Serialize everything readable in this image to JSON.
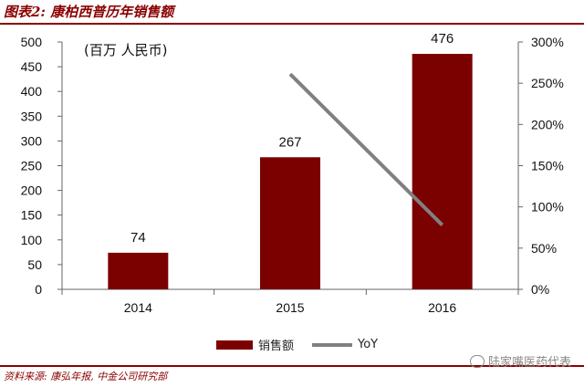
{
  "figure": {
    "title": "图表2: 康柏西普历年销售额",
    "source": "资料来源: 康弘年报, 中金公司研究部",
    "watermark": "陆家嘴医药代表",
    "unit_label": "(百万 人民币)"
  },
  "chart_data": {
    "type": "bar",
    "title": "",
    "categories": [
      "2014",
      "2015",
      "2016"
    ],
    "series": [
      {
        "name": "销售额",
        "type": "bar",
        "axis": "left",
        "values": [
          74,
          267,
          476
        ],
        "color": "#7b0000"
      },
      {
        "name": "YoY",
        "type": "line",
        "axis": "right",
        "values": [
          null,
          2.61,
          0.78
        ],
        "color": "#808080"
      }
    ],
    "data_labels": [
      "74",
      "267",
      "476"
    ],
    "ylim": [
      0,
      500
    ],
    "y_ticks": [
      "0",
      "50",
      "100",
      "150",
      "200",
      "250",
      "300",
      "350",
      "400",
      "450",
      "500"
    ],
    "y2lim": [
      0,
      3
    ],
    "y2_ticks": [
      "0%",
      "50%",
      "100%",
      "150%",
      "200%",
      "250%",
      "300%"
    ],
    "legend_position": "bottom",
    "grid": false
  }
}
